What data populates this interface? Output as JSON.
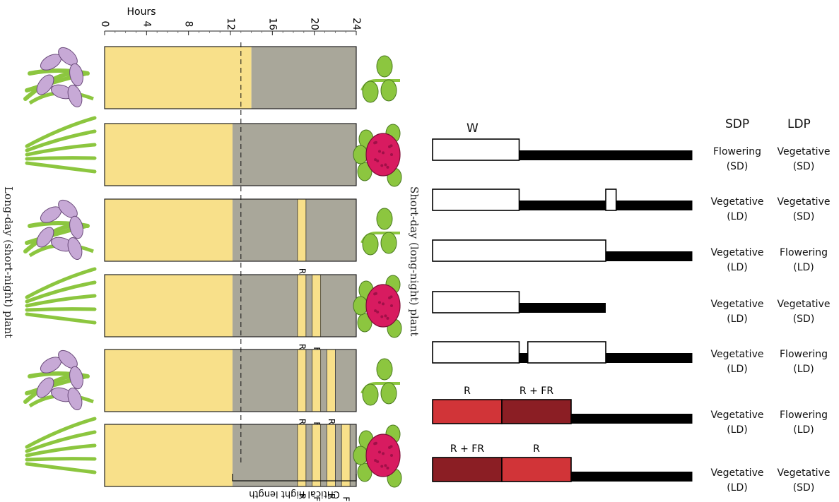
{
  "left_panel": {
    "axis_title": "Hours",
    "axis_ticks": [
      "0",
      "4",
      "8",
      "12",
      "16",
      "20",
      "24"
    ],
    "critical_line_label": "Critical night length",
    "left_side_label": "Long-day (short-night) plant",
    "right_side_label": "Short-day (long-night) plant",
    "colors": {
      "light": "#f8e08a",
      "dark": "#a9a79a",
      "stem": "#8cc63f",
      "iris": "#c7a9d6",
      "flower": "#d81b60"
    },
    "rows": [
      {
        "day_hours": 14,
        "pulses": [],
        "pulse_labels": [],
        "long_day_plant": "iris-flower-icon",
        "short_day_plant": "leafy-stem-icon"
      },
      {
        "day_hours": 12.2,
        "pulses": [],
        "pulse_labels": [],
        "long_day_plant": "grass-vegetative-icon",
        "short_day_plant": "magenta-flower-icon"
      },
      {
        "day_hours": 12.2,
        "pulses": [
          18.8
        ],
        "pulse_labels": [
          "R"
        ],
        "long_day_plant": "iris-flower-icon",
        "short_day_plant": "leafy-stem-icon"
      },
      {
        "day_hours": 12.2,
        "pulses": [
          18.8,
          20.2
        ],
        "pulse_labels": [
          "R",
          "FR"
        ],
        "long_day_plant": "grass-vegetative-icon",
        "short_day_plant": "magenta-flower-icon"
      },
      {
        "day_hours": 12.2,
        "pulses": [
          18.8,
          20.2,
          21.6
        ],
        "pulse_labels": [
          "R",
          "FR",
          "R"
        ],
        "long_day_plant": "iris-flower-icon",
        "short_day_plant": "leafy-stem-icon"
      },
      {
        "day_hours": 12.2,
        "pulses": [
          18.8,
          20.2,
          21.6,
          23.0
        ],
        "pulse_labels": [
          "R",
          "FR",
          "R",
          "FR"
        ],
        "long_day_plant": "grass-vegetative-icon",
        "short_day_plant": "magenta-flower-icon"
      }
    ]
  },
  "right_panel": {
    "w_label": "W",
    "col_headers": [
      "SDP",
      "LDP"
    ],
    "colors": {
      "red": "#d13438",
      "dark_red": "#8b1e24",
      "black": "#000000",
      "white": "#ffffff"
    },
    "rows": [
      {
        "segments": [
          {
            "kind": "white",
            "len": 5
          },
          {
            "kind": "black",
            "len": 10
          }
        ],
        "seg_labels": [],
        "sdp": "Flowering",
        "sdp_sub": "(SD)",
        "ldp": "Vegetative",
        "ldp_sub": "(SD)"
      },
      {
        "segments": [
          {
            "kind": "white",
            "len": 5
          },
          {
            "kind": "black",
            "len": 5
          },
          {
            "kind": "white",
            "len": 0.6
          },
          {
            "kind": "black",
            "len": 4.4
          }
        ],
        "seg_labels": [],
        "sdp": "Vegetative",
        "sdp_sub": "(LD)",
        "ldp": "Vegetative",
        "ldp_sub": "(SD)"
      },
      {
        "segments": [
          {
            "kind": "white",
            "len": 10
          },
          {
            "kind": "black",
            "len": 5
          }
        ],
        "seg_labels": [],
        "sdp": "Vegetative",
        "sdp_sub": "(LD)",
        "ldp": "Flowering",
        "ldp_sub": "(LD)"
      },
      {
        "segments": [
          {
            "kind": "white",
            "len": 5
          },
          {
            "kind": "black",
            "len": 5
          }
        ],
        "seg_labels": [],
        "sdp": "Vegetative",
        "sdp_sub": "(LD)",
        "ldp": "Vegetative",
        "ldp_sub": "(SD)"
      },
      {
        "segments": [
          {
            "kind": "white",
            "len": 5
          },
          {
            "kind": "black",
            "len": 0.5
          },
          {
            "kind": "white",
            "len": 4.5
          },
          {
            "kind": "black",
            "len": 5
          }
        ],
        "seg_labels": [],
        "sdp": "Vegetative",
        "sdp_sub": "(LD)",
        "ldp": "Flowering",
        "ldp_sub": "(LD)"
      },
      {
        "segments": [
          {
            "kind": "red",
            "len": 4
          },
          {
            "kind": "dark_red",
            "len": 4
          },
          {
            "kind": "black",
            "len": 7
          }
        ],
        "seg_labels": [
          "R",
          "R + FR"
        ],
        "sdp": "Vegetative",
        "sdp_sub": "(LD)",
        "ldp": "Flowering",
        "ldp_sub": "(LD)"
      },
      {
        "segments": [
          {
            "kind": "dark_red",
            "len": 4
          },
          {
            "kind": "red",
            "len": 4
          },
          {
            "kind": "black",
            "len": 7
          }
        ],
        "seg_labels": [
          "R + FR",
          "R"
        ],
        "sdp": "Vegetative",
        "sdp_sub": "(LD)",
        "ldp": "Vegetative",
        "ldp_sub": "(SD)"
      }
    ]
  }
}
